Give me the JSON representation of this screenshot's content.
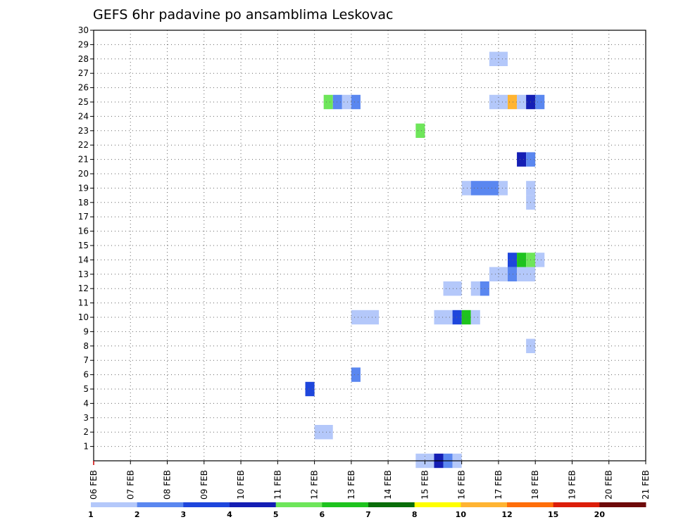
{
  "chart_data": {
    "type": "heatmap",
    "title": "GEFS 6hr padavine po ansamblima Leskovac",
    "xlabel": "",
    "ylabel": "",
    "x_tick_labels": [
      "06 FEB",
      "07 FEB",
      "08 FEB",
      "09 FEB",
      "10 FEB",
      "11 FEB",
      "12 FEB",
      "13 FEB",
      "14 FEB",
      "15 FEB",
      "16 FEB",
      "17 FEB",
      "18 FEB",
      "19 FEB",
      "20 FEB",
      "21 FEB"
    ],
    "x_range_days": [
      0,
      15
    ],
    "y_tick_labels": [
      "1",
      "2",
      "3",
      "4",
      "5",
      "6",
      "7",
      "8",
      "9",
      "10",
      "11",
      "12",
      "13",
      "14",
      "15",
      "16",
      "17",
      "18",
      "19",
      "20",
      "21",
      "22",
      "23",
      "24",
      "25",
      "26",
      "27",
      "28",
      "29",
      "30"
    ],
    "y_range": [
      0,
      30
    ],
    "grid": true,
    "colorbar": {
      "labels": [
        "1",
        "2",
        "3",
        "4",
        "5",
        "6",
        "7",
        "8",
        "10",
        "12",
        "15",
        "20"
      ],
      "colors": [
        "#b4c8fa",
        "#5a87f0",
        "#1e46dc",
        "#141eb4",
        "#6ee65a",
        "#1ec31e",
        "#0a6e0a",
        "#ffff00",
        "#ffb432",
        "#ff6e0a",
        "#dc1e0a",
        "#6e0a0a"
      ]
    },
    "cells_note": "each cell: [start_day_from_06FEB, end_day, ensemble_member, color_index]",
    "cells": [
      [
        8.75,
        9.0,
        0,
        0
      ],
      [
        9.0,
        9.25,
        0,
        0
      ],
      [
        9.25,
        9.5,
        0,
        3
      ],
      [
        9.5,
        9.75,
        0,
        1
      ],
      [
        9.75,
        10.0,
        0,
        0
      ],
      [
        6.0,
        6.5,
        2,
        0
      ],
      [
        5.75,
        6.0,
        5,
        2
      ],
      [
        7.0,
        7.25,
        6,
        1
      ],
      [
        11.75,
        12.0,
        8,
        0
      ],
      [
        7.0,
        7.75,
        10,
        0
      ],
      [
        9.25,
        9.75,
        10,
        0
      ],
      [
        9.75,
        10.0,
        10,
        2
      ],
      [
        10.0,
        10.25,
        10,
        5
      ],
      [
        10.25,
        10.5,
        10,
        0
      ],
      [
        9.5,
        10.0,
        12,
        0
      ],
      [
        10.25,
        10.5,
        12,
        0
      ],
      [
        10.5,
        10.75,
        12,
        1
      ],
      [
        10.75,
        11.25,
        13,
        0
      ],
      [
        11.25,
        11.5,
        13,
        1
      ],
      [
        11.5,
        12.0,
        13,
        0
      ],
      [
        11.25,
        11.5,
        14,
        2
      ],
      [
        11.5,
        11.75,
        14,
        5
      ],
      [
        11.75,
        12.0,
        14,
        4
      ],
      [
        12.0,
        12.25,
        14,
        0
      ],
      [
        10.0,
        10.25,
        19,
        0
      ],
      [
        10.25,
        11.0,
        19,
        1
      ],
      [
        11.0,
        11.25,
        19,
        0
      ],
      [
        11.75,
        12.0,
        18,
        0
      ],
      [
        11.75,
        12.0,
        19,
        0
      ],
      [
        11.5,
        11.75,
        21,
        3
      ],
      [
        11.75,
        12.0,
        21,
        1
      ],
      [
        8.75,
        9.0,
        23,
        4
      ],
      [
        6.25,
        6.5,
        25,
        4
      ],
      [
        6.5,
        6.75,
        25,
        1
      ],
      [
        6.75,
        7.0,
        25,
        0
      ],
      [
        7.0,
        7.25,
        25,
        1
      ],
      [
        10.75,
        11.25,
        25,
        0
      ],
      [
        11.25,
        11.5,
        25,
        8
      ],
      [
        11.5,
        11.75,
        25,
        0
      ],
      [
        11.75,
        12.0,
        25,
        3
      ],
      [
        12.0,
        12.25,
        25,
        1
      ],
      [
        10.75,
        11.25,
        28,
        0
      ]
    ]
  }
}
